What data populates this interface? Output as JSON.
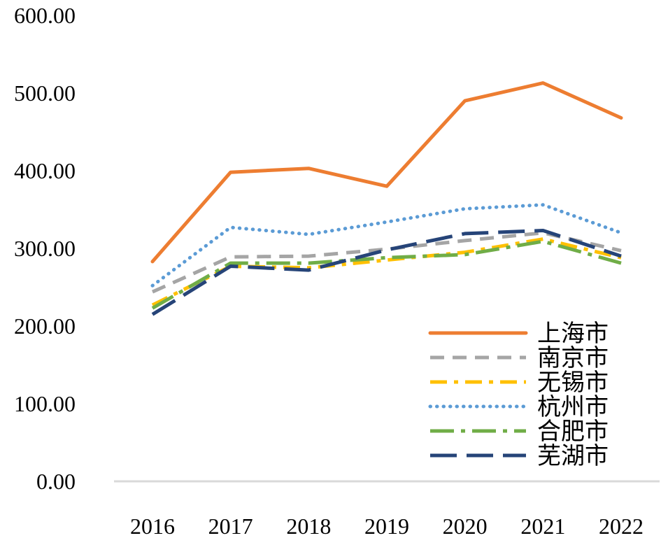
{
  "chart_data": {
    "type": "line",
    "title": "",
    "xlabel": "",
    "ylabel": "",
    "categories": [
      "2016",
      "2017",
      "2018",
      "2019",
      "2020",
      "2021",
      "2022"
    ],
    "ylim": [
      0,
      600
    ],
    "ytick_values": [
      0,
      100,
      200,
      300,
      400,
      500,
      600
    ],
    "yticks": [
      "0.00",
      "100.00",
      "200.00",
      "300.00",
      "400.00",
      "500.00",
      "600.00"
    ],
    "grid": false,
    "legend_position": "bottom-right",
    "axis_color": "#D9D9D9",
    "series": [
      {
        "name": "上海市",
        "color": "#ED7D31",
        "values": [
          283,
          398,
          403,
          380,
          490,
          513,
          468
        ]
      },
      {
        "name": "南京市",
        "color": "#A5A5A5",
        "values": [
          244,
          289,
          290,
          299,
          310,
          320,
          297
        ]
      },
      {
        "name": "无锡市",
        "color": "#FFC000",
        "values": [
          227,
          277,
          275,
          285,
          295,
          312,
          288
        ]
      },
      {
        "name": "杭州市",
        "color": "#5B9BD5",
        "values": [
          252,
          327,
          318,
          334,
          351,
          356,
          320
        ]
      },
      {
        "name": "合肥市",
        "color": "#70AD47",
        "values": [
          223,
          281,
          281,
          288,
          292,
          309,
          281
        ]
      },
      {
        "name": "芜湖市",
        "color": "#264478",
        "values": [
          215,
          277,
          272,
          298,
          319,
          323,
          290
        ]
      }
    ]
  }
}
